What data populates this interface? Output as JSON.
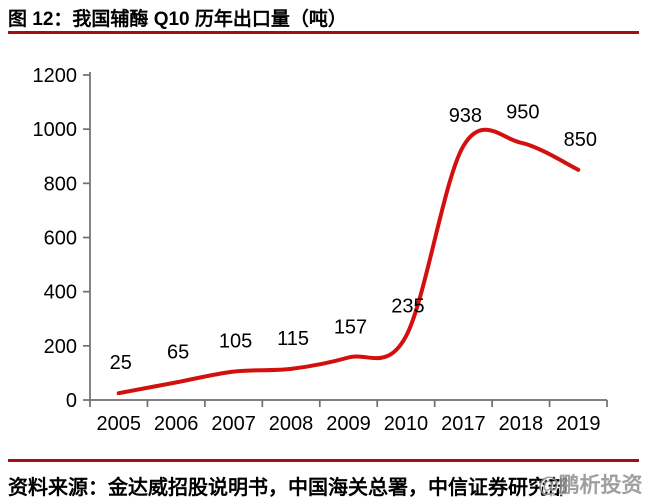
{
  "header": {
    "title": "图 12：我国辅酶 Q10 历年出口量（吨）"
  },
  "chart_data": {
    "type": "line",
    "title": "我国辅酶 Q10 历年出口量（吨）",
    "categories": [
      "2005",
      "2006",
      "2007",
      "2008",
      "2009",
      "2010",
      "2017",
      "2018",
      "2019"
    ],
    "values": [
      25,
      65,
      105,
      115,
      157,
      235,
      938,
      950,
      850
    ],
    "xlabel": "",
    "ylabel": "",
    "ylim": [
      0,
      1200
    ],
    "yticks": [
      0,
      200,
      400,
      600,
      800,
      1000,
      1200
    ],
    "grid": false,
    "legend_position": "none",
    "smooth": true,
    "show_data_labels": true
  },
  "footer": {
    "source": "资料来源：金达威招股说明书，中国海关总署，中信证券研究部",
    "watermark": "@鹏析投资"
  },
  "colors": {
    "line": "#d40f0f",
    "divider": "#a21111",
    "axis": "#6f6f6f",
    "text": "#000000",
    "watermark": "#8f8f8f"
  }
}
